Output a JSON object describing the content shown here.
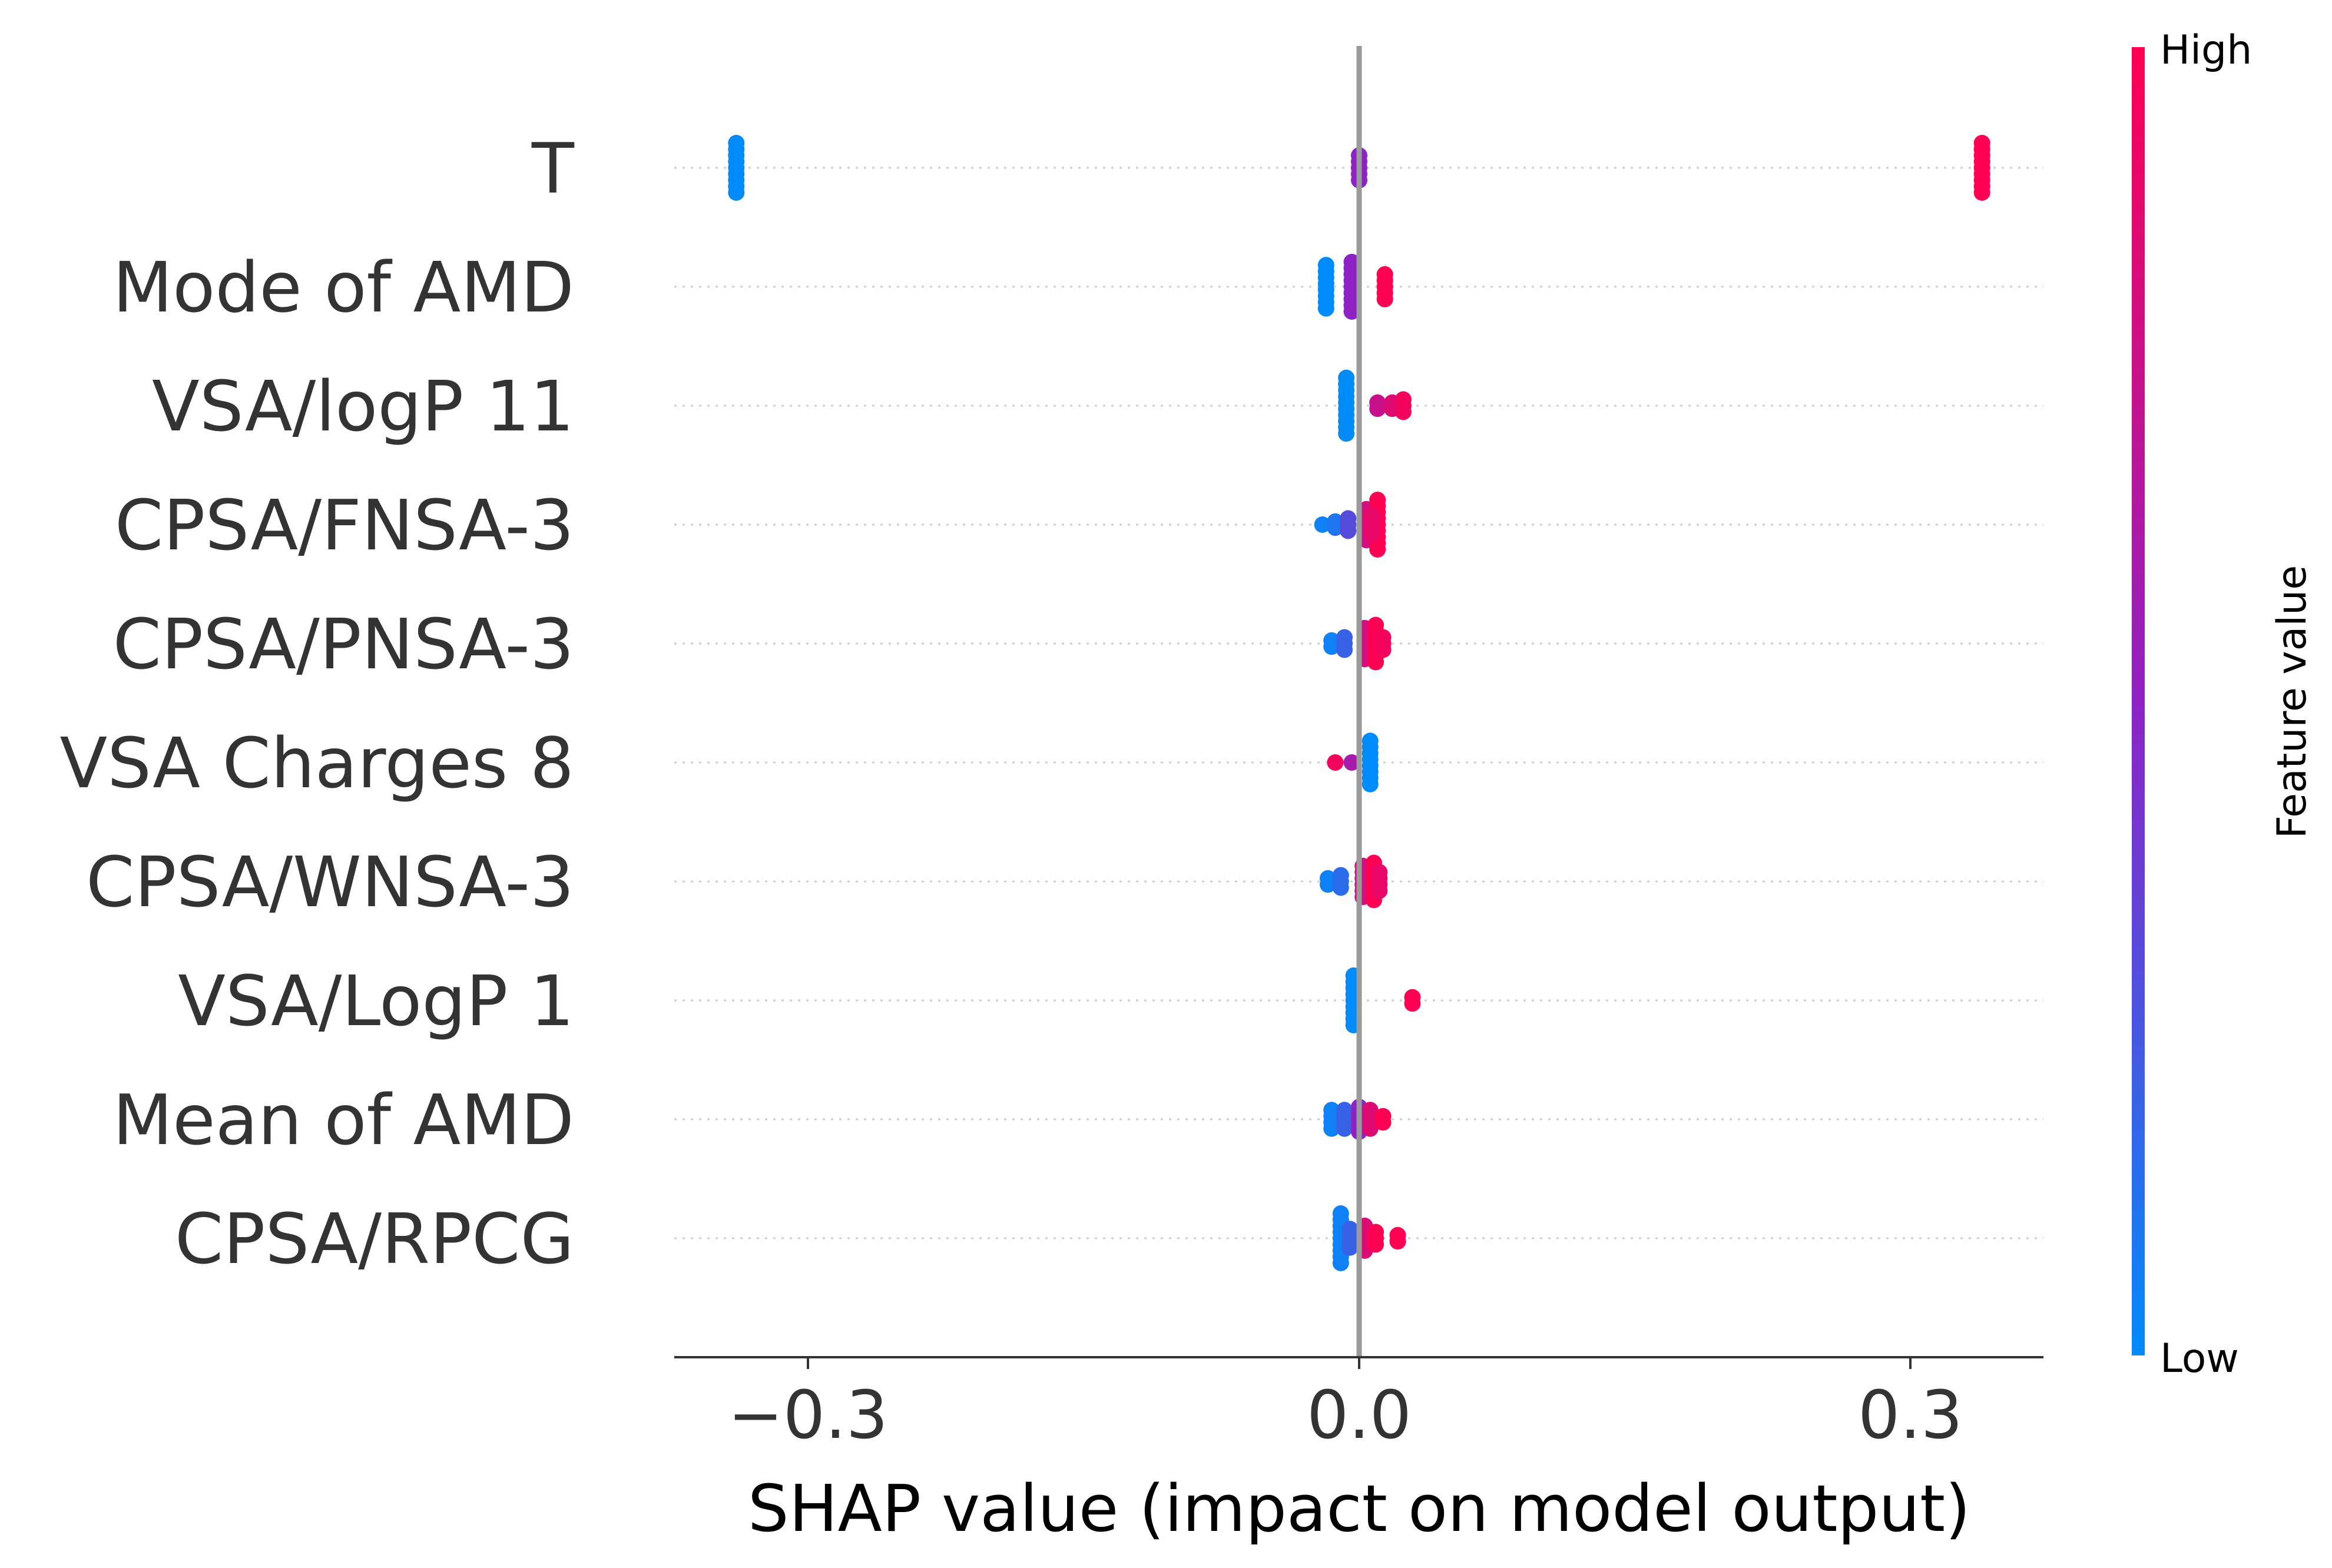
{
  "chart_data": {
    "type": "scatter",
    "subtype": "shap-beeswarm",
    "xlabel": "SHAP value (impact on model output)",
    "xlim": [
      -0.37,
      0.37
    ],
    "xticks": [
      {
        "value": -0.3,
        "label": "−0.3"
      },
      {
        "value": 0.0,
        "label": "0.0"
      },
      {
        "value": 0.3,
        "label": "0.3"
      }
    ],
    "zero_line": true,
    "colorbar": {
      "title": "Feature value",
      "high_label": "High",
      "low_label": "Low",
      "low_color": "#008bfb",
      "mid_color": "#8f22c4",
      "high_color": "#ff0052"
    },
    "features": [
      {
        "name": "T",
        "points": [
          {
            "x": -0.339,
            "v": 0.0,
            "n": 9
          },
          {
            "x": 0.0,
            "v": 0.5,
            "n": 5
          },
          {
            "x": 0.339,
            "v": 1.0,
            "n": 9
          }
        ]
      },
      {
        "name": "Mode of AMD",
        "points": [
          {
            "x": -0.018,
            "v": 0.0,
            "n": 8
          },
          {
            "x": -0.004,
            "v": 0.5,
            "n": 9
          },
          {
            "x": 0.014,
            "v": 1.0,
            "n": 5
          }
        ]
      },
      {
        "name": "VSA/logP 11",
        "points": [
          {
            "x": -0.007,
            "v": 0.0,
            "n": 10
          },
          {
            "x": 0.01,
            "v": 0.75,
            "n": 2
          },
          {
            "x": 0.018,
            "v": 0.85,
            "n": 2
          },
          {
            "x": 0.024,
            "v": 0.95,
            "n": 3
          }
        ]
      },
      {
        "name": "CPSA/FNSA-3",
        "points": [
          {
            "x": -0.02,
            "v": 0.05,
            "n": 1
          },
          {
            "x": -0.013,
            "v": 0.1,
            "n": 2
          },
          {
            "x": -0.006,
            "v": 0.3,
            "n": 3
          },
          {
            "x": 0.004,
            "v": 0.8,
            "n": 6
          },
          {
            "x": 0.01,
            "v": 1.0,
            "n": 9
          },
          {
            "x": 0.007,
            "v": 0.9,
            "n": 4
          }
        ]
      },
      {
        "name": "CPSA/PNSA-3",
        "points": [
          {
            "x": -0.015,
            "v": 0.05,
            "n": 2
          },
          {
            "x": -0.008,
            "v": 0.2,
            "n": 3
          },
          {
            "x": 0.003,
            "v": 0.8,
            "n": 6
          },
          {
            "x": 0.009,
            "v": 1.0,
            "n": 7
          },
          {
            "x": 0.013,
            "v": 0.95,
            "n": 3
          }
        ]
      },
      {
        "name": "VSA Charges 8",
        "points": [
          {
            "x": -0.013,
            "v": 0.95,
            "n": 1
          },
          {
            "x": -0.004,
            "v": 0.6,
            "n": 1
          },
          {
            "x": 0.006,
            "v": 0.0,
            "n": 8
          }
        ]
      },
      {
        "name": "CPSA/WNSA-3",
        "points": [
          {
            "x": -0.017,
            "v": 0.05,
            "n": 2
          },
          {
            "x": -0.01,
            "v": 0.15,
            "n": 3
          },
          {
            "x": 0.002,
            "v": 0.8,
            "n": 6
          },
          {
            "x": 0.008,
            "v": 1.0,
            "n": 7
          },
          {
            "x": 0.011,
            "v": 0.9,
            "n": 4
          }
        ]
      },
      {
        "name": "VSA/LogP 1",
        "points": [
          {
            "x": -0.003,
            "v": 0.0,
            "n": 9
          },
          {
            "x": 0.029,
            "v": 1.0,
            "n": 2
          }
        ]
      },
      {
        "name": "Mean of AMD",
        "points": [
          {
            "x": -0.015,
            "v": 0.05,
            "n": 4
          },
          {
            "x": -0.008,
            "v": 0.2,
            "n": 4
          },
          {
            "x": 0.0,
            "v": 0.5,
            "n": 5
          },
          {
            "x": 0.006,
            "v": 0.85,
            "n": 4
          },
          {
            "x": 0.013,
            "v": 1.0,
            "n": 2
          }
        ]
      },
      {
        "name": "CPSA/RPCG",
        "points": [
          {
            "x": -0.01,
            "v": 0.05,
            "n": 9
          },
          {
            "x": -0.005,
            "v": 0.2,
            "n": 4
          },
          {
            "x": 0.003,
            "v": 0.85,
            "n": 5
          },
          {
            "x": 0.009,
            "v": 1.0,
            "n": 3
          },
          {
            "x": 0.021,
            "v": 1.0,
            "n": 2
          }
        ]
      }
    ]
  }
}
